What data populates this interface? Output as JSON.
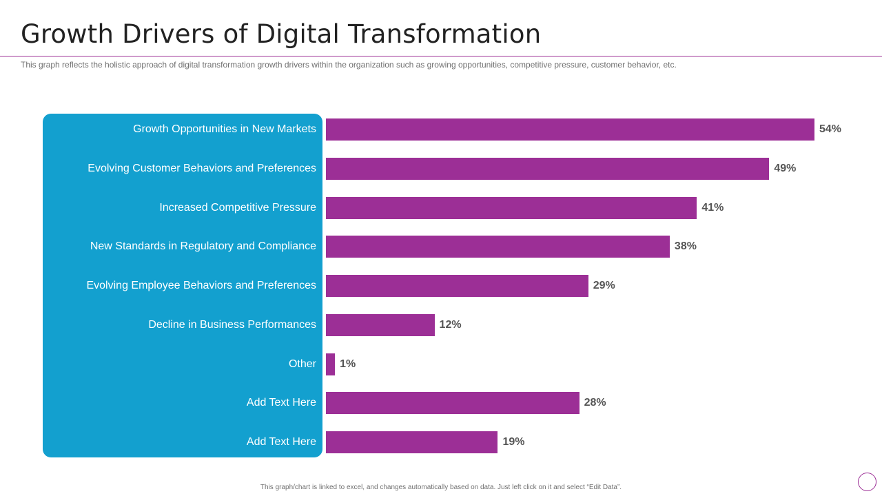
{
  "header": {
    "title": "Growth Drivers of Digital Transformation",
    "subtitle": "This graph reflects the holistic approach of digital transformation growth drivers within the organization such as growing opportunities, competitive pressure, customer behavior, etc."
  },
  "footer": {
    "note": "This graph/chart is linked to excel, and changes automatically based on data. Just left click on it and select “Edit Data”."
  },
  "colors": {
    "bar": "#9c2f96",
    "panel": "#13a0cf"
  },
  "chart_data": {
    "type": "bar",
    "orientation": "horizontal",
    "title": "Growth Drivers of Digital Transformation",
    "xlabel": "",
    "ylabel": "",
    "xlim": [
      0,
      54
    ],
    "categories": [
      "Growth Opportunities in New Markets",
      "Evolving Customer Behaviors and Preferences",
      "Increased Competitive Pressure",
      "New Standards in Regulatory and Compliance",
      "Evolving Employee Behaviors and Preferences",
      "Decline in Business Performances",
      "Other",
      "Add Text Here",
      "Add Text Here"
    ],
    "values": [
      54,
      49,
      41,
      38,
      29,
      12,
      1,
      28,
      19
    ],
    "value_labels": [
      "54%",
      "49%",
      "41%",
      "38%",
      "29%",
      "12%",
      "1%",
      "28%",
      "19%"
    ]
  }
}
